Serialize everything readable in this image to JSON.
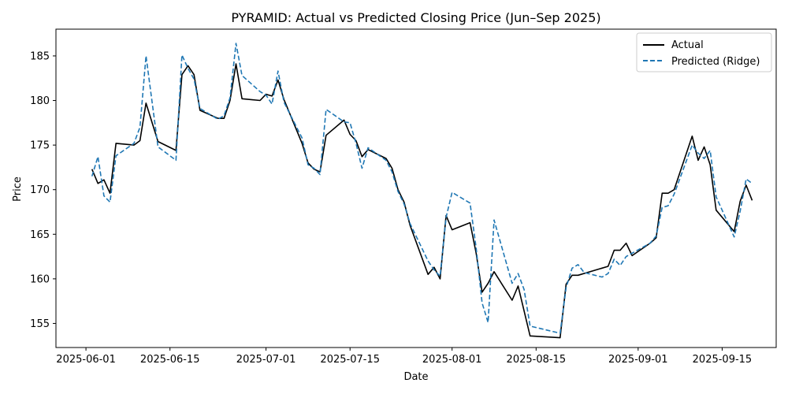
{
  "chart_data": {
    "type": "line",
    "title": "PYRAMID: Actual vs Predicted Closing Price (Jun–Sep 2025)",
    "xlabel": "Date",
    "ylabel": "Price",
    "x_tick_labels": [
      "2025-06-01",
      "2025-06-15",
      "2025-07-01",
      "2025-07-15",
      "2025-08-01",
      "2025-08-15",
      "2025-09-01",
      "2025-09-15"
    ],
    "y_tick_labels": [
      "155",
      "160",
      "165",
      "170",
      "175",
      "180",
      "185"
    ],
    "ylim": [
      152.3,
      188.0
    ],
    "xlim": [
      "2025-05-27",
      "2025-09-24"
    ],
    "legend_position": "top-right",
    "grid": false,
    "series": [
      {
        "name": "Actual",
        "color": "#000000",
        "style": "solid",
        "points": [
          [
            "2025-06-02",
            172.3
          ],
          [
            "2025-06-03",
            170.7
          ],
          [
            "2025-06-04",
            171.1
          ],
          [
            "2025-06-05",
            169.6
          ],
          [
            "2025-06-06",
            175.2
          ],
          [
            "2025-06-09",
            175.0
          ],
          [
            "2025-06-10",
            175.5
          ],
          [
            "2025-06-11",
            179.7
          ],
          [
            "2025-06-13",
            175.4
          ],
          [
            "2025-06-16",
            174.4
          ],
          [
            "2025-06-17",
            182.9
          ],
          [
            "2025-06-18",
            183.9
          ],
          [
            "2025-06-19",
            182.9
          ],
          [
            "2025-06-20",
            178.9
          ],
          [
            "2025-06-23",
            178.0
          ],
          [
            "2025-06-24",
            178.0
          ],
          [
            "2025-06-25",
            180.0
          ],
          [
            "2025-06-26",
            184.1
          ],
          [
            "2025-06-27",
            180.2
          ],
          [
            "2025-06-30",
            180.0
          ],
          [
            "2025-07-01",
            180.7
          ],
          [
            "2025-07-02",
            180.5
          ],
          [
            "2025-07-03",
            182.3
          ],
          [
            "2025-07-04",
            180.1
          ],
          [
            "2025-07-07",
            175.2
          ],
          [
            "2025-07-08",
            173.0
          ],
          [
            "2025-07-09",
            172.3
          ],
          [
            "2025-07-10",
            172.0
          ],
          [
            "2025-07-11",
            176.1
          ],
          [
            "2025-07-14",
            177.8
          ],
          [
            "2025-07-15",
            176.2
          ],
          [
            "2025-07-16",
            175.5
          ],
          [
            "2025-07-17",
            173.7
          ],
          [
            "2025-07-18",
            174.5
          ],
          [
            "2025-07-21",
            173.5
          ],
          [
            "2025-07-22",
            172.4
          ],
          [
            "2025-07-23",
            170.0
          ],
          [
            "2025-07-24",
            168.6
          ],
          [
            "2025-07-25",
            166.0
          ],
          [
            "2025-07-28",
            160.5
          ],
          [
            "2025-07-29",
            161.3
          ],
          [
            "2025-07-30",
            160.0
          ],
          [
            "2025-07-31",
            167.1
          ],
          [
            "2025-08-01",
            165.5
          ],
          [
            "2025-08-04",
            166.3
          ],
          [
            "2025-08-05",
            162.9
          ],
          [
            "2025-08-06",
            158.5
          ],
          [
            "2025-08-07",
            159.5
          ],
          [
            "2025-08-08",
            160.8
          ],
          [
            "2025-08-11",
            157.6
          ],
          [
            "2025-08-12",
            159.2
          ],
          [
            "2025-08-14",
            153.6
          ],
          [
            "2025-08-19",
            153.4
          ],
          [
            "2025-08-20",
            159.4
          ],
          [
            "2025-08-21",
            160.4
          ],
          [
            "2025-08-22",
            160.4
          ],
          [
            "2025-08-25",
            161.0
          ],
          [
            "2025-08-27",
            161.4
          ],
          [
            "2025-08-28",
            163.2
          ],
          [
            "2025-08-29",
            163.2
          ],
          [
            "2025-08-30",
            164.0
          ],
          [
            "2025-08-31",
            162.6
          ],
          [
            "2025-09-03",
            164.0
          ],
          [
            "2025-09-04",
            164.6
          ],
          [
            "2025-09-05",
            169.6
          ],
          [
            "2025-09-06",
            169.6
          ],
          [
            "2025-09-07",
            170.0
          ],
          [
            "2025-09-10",
            176.0
          ],
          [
            "2025-09-11",
            173.3
          ],
          [
            "2025-09-12",
            174.8
          ],
          [
            "2025-09-13",
            172.8
          ],
          [
            "2025-09-14",
            167.7
          ],
          [
            "2025-09-17",
            165.3
          ],
          [
            "2025-09-18",
            168.7
          ],
          [
            "2025-09-19",
            170.5
          ],
          [
            "2025-09-20",
            168.8
          ]
        ]
      },
      {
        "name": "Predicted (Ridge)",
        "color": "#1f77b4",
        "style": "dashed",
        "points": [
          [
            "2025-06-02",
            171.5
          ],
          [
            "2025-06-03",
            173.7
          ],
          [
            "2025-06-04",
            169.3
          ],
          [
            "2025-06-05",
            168.6
          ],
          [
            "2025-06-06",
            173.8
          ],
          [
            "2025-06-09",
            175.2
          ],
          [
            "2025-06-10",
            177.0
          ],
          [
            "2025-06-11",
            185.0
          ],
          [
            "2025-06-13",
            174.8
          ],
          [
            "2025-06-16",
            173.3
          ],
          [
            "2025-06-17",
            185.1
          ],
          [
            "2025-06-18",
            183.6
          ],
          [
            "2025-06-19",
            182.4
          ],
          [
            "2025-06-20",
            179.1
          ],
          [
            "2025-06-23",
            177.9
          ],
          [
            "2025-06-24",
            178.3
          ],
          [
            "2025-06-25",
            180.3
          ],
          [
            "2025-06-26",
            186.4
          ],
          [
            "2025-06-27",
            182.8
          ],
          [
            "2025-06-30",
            181.0
          ],
          [
            "2025-07-01",
            180.6
          ],
          [
            "2025-07-02",
            179.6
          ],
          [
            "2025-07-03",
            183.3
          ],
          [
            "2025-07-04",
            179.8
          ],
          [
            "2025-07-07",
            175.8
          ],
          [
            "2025-07-08",
            172.8
          ],
          [
            "2025-07-09",
            172.4
          ],
          [
            "2025-07-10",
            171.7
          ],
          [
            "2025-07-11",
            179.0
          ],
          [
            "2025-07-14",
            177.6
          ],
          [
            "2025-07-15",
            177.5
          ],
          [
            "2025-07-16",
            175.2
          ],
          [
            "2025-07-17",
            172.4
          ],
          [
            "2025-07-18",
            174.7
          ],
          [
            "2025-07-21",
            173.3
          ],
          [
            "2025-07-22",
            172.0
          ],
          [
            "2025-07-23",
            169.8
          ],
          [
            "2025-07-24",
            168.4
          ],
          [
            "2025-07-25",
            166.2
          ],
          [
            "2025-07-28",
            162.0
          ],
          [
            "2025-07-29",
            161.0
          ],
          [
            "2025-07-30",
            160.3
          ],
          [
            "2025-07-31",
            166.9
          ],
          [
            "2025-08-01",
            169.7
          ],
          [
            "2025-08-04",
            168.5
          ],
          [
            "2025-08-05",
            163.5
          ],
          [
            "2025-08-06",
            157.3
          ],
          [
            "2025-08-07",
            155.1
          ],
          [
            "2025-08-08",
            166.6
          ],
          [
            "2025-08-11",
            159.5
          ],
          [
            "2025-08-12",
            160.6
          ],
          [
            "2025-08-13",
            158.8
          ],
          [
            "2025-08-14",
            154.7
          ],
          [
            "2025-08-19",
            153.9
          ],
          [
            "2025-08-20",
            159.0
          ],
          [
            "2025-08-21",
            161.2
          ],
          [
            "2025-08-22",
            161.6
          ],
          [
            "2025-08-23",
            160.7
          ],
          [
            "2025-08-26",
            160.2
          ],
          [
            "2025-08-27",
            160.6
          ],
          [
            "2025-08-28",
            162.2
          ],
          [
            "2025-08-29",
            161.5
          ],
          [
            "2025-08-30",
            162.5
          ],
          [
            "2025-09-03",
            164.0
          ],
          [
            "2025-09-04",
            164.8
          ],
          [
            "2025-09-05",
            168.0
          ],
          [
            "2025-09-06",
            168.2
          ],
          [
            "2025-09-07",
            169.5
          ],
          [
            "2025-09-10",
            175.0
          ],
          [
            "2025-09-11",
            174.1
          ],
          [
            "2025-09-12",
            173.5
          ],
          [
            "2025-09-13",
            174.4
          ],
          [
            "2025-09-14",
            169.2
          ],
          [
            "2025-09-17",
            164.7
          ],
          [
            "2025-09-18",
            167.6
          ],
          [
            "2025-09-19",
            171.2
          ],
          [
            "2025-09-20",
            170.7
          ]
        ]
      }
    ]
  }
}
